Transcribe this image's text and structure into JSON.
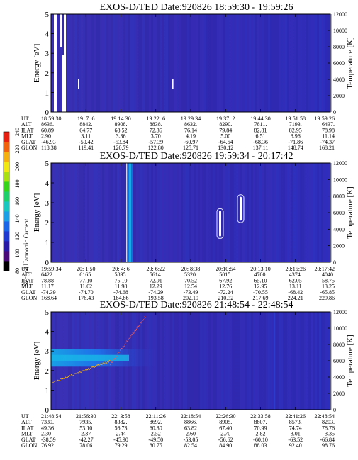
{
  "colorbar": {
    "label": "Second Harmonic Current",
    "ticks": [
      "240",
      "220",
      "200",
      "180",
      "160",
      "140",
      "120",
      "100",
      "80"
    ],
    "colors": [
      "#000000",
      "#4b0a7a",
      "#2a1aa8",
      "#1f3ad0",
      "#1a66e8",
      "#19a0e6",
      "#18c8c0",
      "#1ed06a",
      "#36d418",
      "#a8e010",
      "#f0e810",
      "#f6b00e",
      "#f2620c",
      "#e81e10"
    ]
  },
  "chart_data": [
    {
      "type": "heatmap",
      "title": "EXOS-D/TED   Date:920826  18:59:30 - 19:59:26",
      "ylabel": "Energy [eV]",
      "y2label": "Temperature [K]",
      "ylim": [
        0,
        5
      ],
      "y2lim": [
        0,
        12000
      ],
      "yticks": [
        "5",
        "4",
        "3",
        "2",
        "1",
        "0"
      ],
      "y2ticks": [
        "12000",
        "10000",
        "8000",
        "6000",
        "4000",
        "2000",
        "0"
      ],
      "time_table": {
        "row_labels": [
          "UT",
          "ALT",
          "ILAT",
          "MLT",
          "GLAT",
          "GLON"
        ],
        "columns": [
          [
            "18:59:30",
            "8636.",
            "60.89",
            "2.90",
            "-46.93",
            "118.38"
          ],
          [
            "19: 7: 6",
            "8842.",
            "64.77",
            "3.11",
            "-50.42",
            "119.41"
          ],
          [
            "19:14:30",
            "8908.",
            "68.52",
            "3.36",
            "-53.84",
            "120.79"
          ],
          [
            "19:22: 6",
            "8838.",
            "72.36",
            "3.70",
            "-57.39",
            "122.80"
          ],
          [
            "19:29:34",
            "8632.",
            "76.14",
            "4.19",
            "-60.97",
            "125.71"
          ],
          [
            "19:37: 2",
            "8290.",
            "79.84",
            "5.00",
            "-64.64",
            "130.12"
          ],
          [
            "19:44:30",
            "7811.",
            "82.81",
            "6.51",
            "-68.36",
            "137.11"
          ],
          [
            "19:51:58",
            "7193.",
            "82.95",
            "8.96",
            "-71.86",
            "148.74"
          ],
          [
            "19:59:26",
            "6437.",
            "78.98",
            "11.14",
            "-74.37",
            "168.21"
          ]
        ]
      }
    },
    {
      "type": "heatmap",
      "title": "EXOS-D/TED   Date:920826  19:59:34 - 20:17:42",
      "ylabel": "Energy [eV]",
      "y2label": "Temperature [K]",
      "ylim": [
        0,
        5
      ],
      "y2lim": [
        0,
        12000
      ],
      "yticks": [
        "5",
        "4",
        "3",
        "2",
        "1",
        "0"
      ],
      "y2ticks": [
        "12000",
        "10000",
        "8000",
        "6000",
        "4000",
        "2000",
        "0"
      ],
      "time_table": {
        "row_labels": [
          "UT",
          "ALT",
          "ILAT",
          "MLT",
          "GLAT",
          "GLON"
        ],
        "columns": [
          [
            "19:59:34",
            "6422.",
            "78.88",
            "11.17",
            "-74.39",
            "168.64"
          ],
          [
            "20: 1:50",
            "6165.",
            "77.10",
            "11.62",
            "-74.70",
            "176.43"
          ],
          [
            "20: 4: 6",
            "5895.",
            "75.10",
            "11.98",
            "-74.68",
            "184.86"
          ],
          [
            "20: 6:22",
            "5614.",
            "72.91",
            "12.29",
            "-74.29",
            "193.58"
          ],
          [
            "20: 8:38",
            "5320.",
            "70.52",
            "12.54",
            "-73.49",
            "202.19"
          ],
          [
            "20:10:54",
            "5015.",
            "67.92",
            "12.76",
            "-72.24",
            "210.32"
          ],
          [
            "20:13:10",
            "4700.",
            "65.10",
            "12.95",
            "-70.55",
            "217.69"
          ],
          [
            "20:15:26",
            "4374.",
            "62.05",
            "13.11",
            "-68.42",
            "224.21"
          ],
          [
            "20:17:42",
            "4040.",
            "58.75",
            "13.25",
            "-65.85",
            "229.86"
          ]
        ]
      }
    },
    {
      "type": "heatmap",
      "title": "EXOS-D/TED   Date:920826  21:48:54 - 22:48:54",
      "ylabel": "Energy [eV]",
      "y2label": "Temperature [K]",
      "ylim": [
        0,
        5
      ],
      "y2lim": [
        0,
        12000
      ],
      "yticks": [
        "5",
        "4",
        "3",
        "2",
        "1",
        "0"
      ],
      "y2ticks": [
        "12000",
        "10000",
        "8000",
        "6000",
        "4000",
        "2000",
        "0"
      ],
      "time_table": {
        "row_labels": [
          "UT",
          "ALT",
          "ILAT",
          "MLT",
          "GLAT",
          "GLON"
        ],
        "columns": [
          [
            "21:48:54",
            "7339.",
            "49.36",
            "2.30",
            "-38.59",
            "76.92"
          ],
          [
            "21:56:30",
            "7935.",
            "53.10",
            "2.37",
            "-42.27",
            "78.06"
          ],
          [
            "22: 3:58",
            "8382.",
            "56.73",
            "2.44",
            "-45.90",
            "79.29"
          ],
          [
            "22:11:26",
            "8692.",
            "60.30",
            "2.52",
            "-49.50",
            "80.75"
          ],
          [
            "22:18:54",
            "8866.",
            "63.82",
            "2.60",
            "-53.05",
            "82.54"
          ],
          [
            "22:26:30",
            "8905.",
            "67.40",
            "2.70",
            "-56.62",
            "84.90"
          ],
          [
            "22:33:58",
            "8807.",
            "70.99",
            "2.82",
            "-60.10",
            "88.03"
          ],
          [
            "22:41:26",
            "8573.",
            "74.74",
            "3.01",
            "-63.52",
            "92.40"
          ],
          [
            "22:48:54",
            "8203.",
            "78.76",
            "3.35",
            "-66.84",
            "98.76"
          ]
        ]
      }
    }
  ]
}
